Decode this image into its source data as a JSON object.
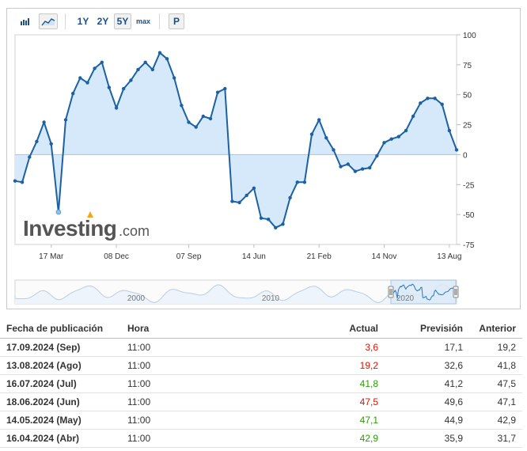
{
  "toolbar": {
    "bar_chart_icon": "bar-chart-icon",
    "line_chart_icon": "area-chart-icon",
    "ranges": [
      "1Y",
      "2Y",
      "5Y",
      "max"
    ],
    "active_range": "5Y",
    "p_label": "P"
  },
  "chart_data": {
    "type": "area",
    "y_ticks": [
      "100",
      "75",
      "50",
      "25",
      "0",
      "-25",
      "-50",
      "-75"
    ],
    "ylim": [
      -75,
      100
    ],
    "x_tick_labels": [
      "17 Mar",
      "08 Dec",
      "07 Sep",
      "14 Jun",
      "21 Feb",
      "14 Nov",
      "13 Aug"
    ],
    "series": [
      {
        "values": [
          -22,
          -23,
          -2,
          11,
          27,
          9,
          -48,
          29,
          51,
          64,
          60,
          72,
          77,
          56,
          39,
          55,
          62,
          71,
          77,
          71,
          85,
          80,
          64,
          41,
          27,
          23,
          32,
          30,
          52,
          55,
          -39,
          -40,
          -34,
          -28,
          -53,
          -54,
          -61,
          -58,
          -36,
          -23,
          -23,
          17,
          29,
          14,
          4,
          -10,
          -8,
          -14,
          -12,
          -11,
          -1,
          10,
          13,
          15,
          20,
          32,
          43,
          47,
          47,
          42,
          20,
          4
        ]
      }
    ],
    "colors": {
      "line": "#1b61a4",
      "fill": "#d6e9fa"
    },
    "grid": false,
    "watermark": "Investing.com",
    "navigator": {
      "year_labels": [
        "2000",
        "2010",
        "2020"
      ]
    }
  },
  "table": {
    "headers": [
      "Fecha de publicación",
      "Hora",
      "Actual",
      "Previsión",
      "Anterior"
    ],
    "rows": [
      {
        "fecha": "17.09.2024 (Sep)",
        "hora": "11:00",
        "actual": "3,6",
        "actual_status": "red",
        "prevision": "17,1",
        "anterior": "19,2"
      },
      {
        "fecha": "13.08.2024 (Ago)",
        "hora": "11:00",
        "actual": "19,2",
        "actual_status": "red",
        "prevision": "32,6",
        "anterior": "41,8"
      },
      {
        "fecha": "16.07.2024 (Jul)",
        "hora": "11:00",
        "actual": "41,8",
        "actual_status": "green",
        "prevision": "41,2",
        "anterior": "47,5"
      },
      {
        "fecha": "18.06.2024 (Jun)",
        "hora": "11:00",
        "actual": "47,5",
        "actual_status": "red",
        "prevision": "49,6",
        "anterior": "47,1"
      },
      {
        "fecha": "14.05.2024 (May)",
        "hora": "11:00",
        "actual": "47,1",
        "actual_status": "green",
        "prevision": "44,9",
        "anterior": "42,9"
      },
      {
        "fecha": "16.04.2024 (Abr)",
        "hora": "11:00",
        "actual": "42,9",
        "actual_status": "green",
        "prevision": "35,9",
        "anterior": "31,7"
      }
    ]
  }
}
